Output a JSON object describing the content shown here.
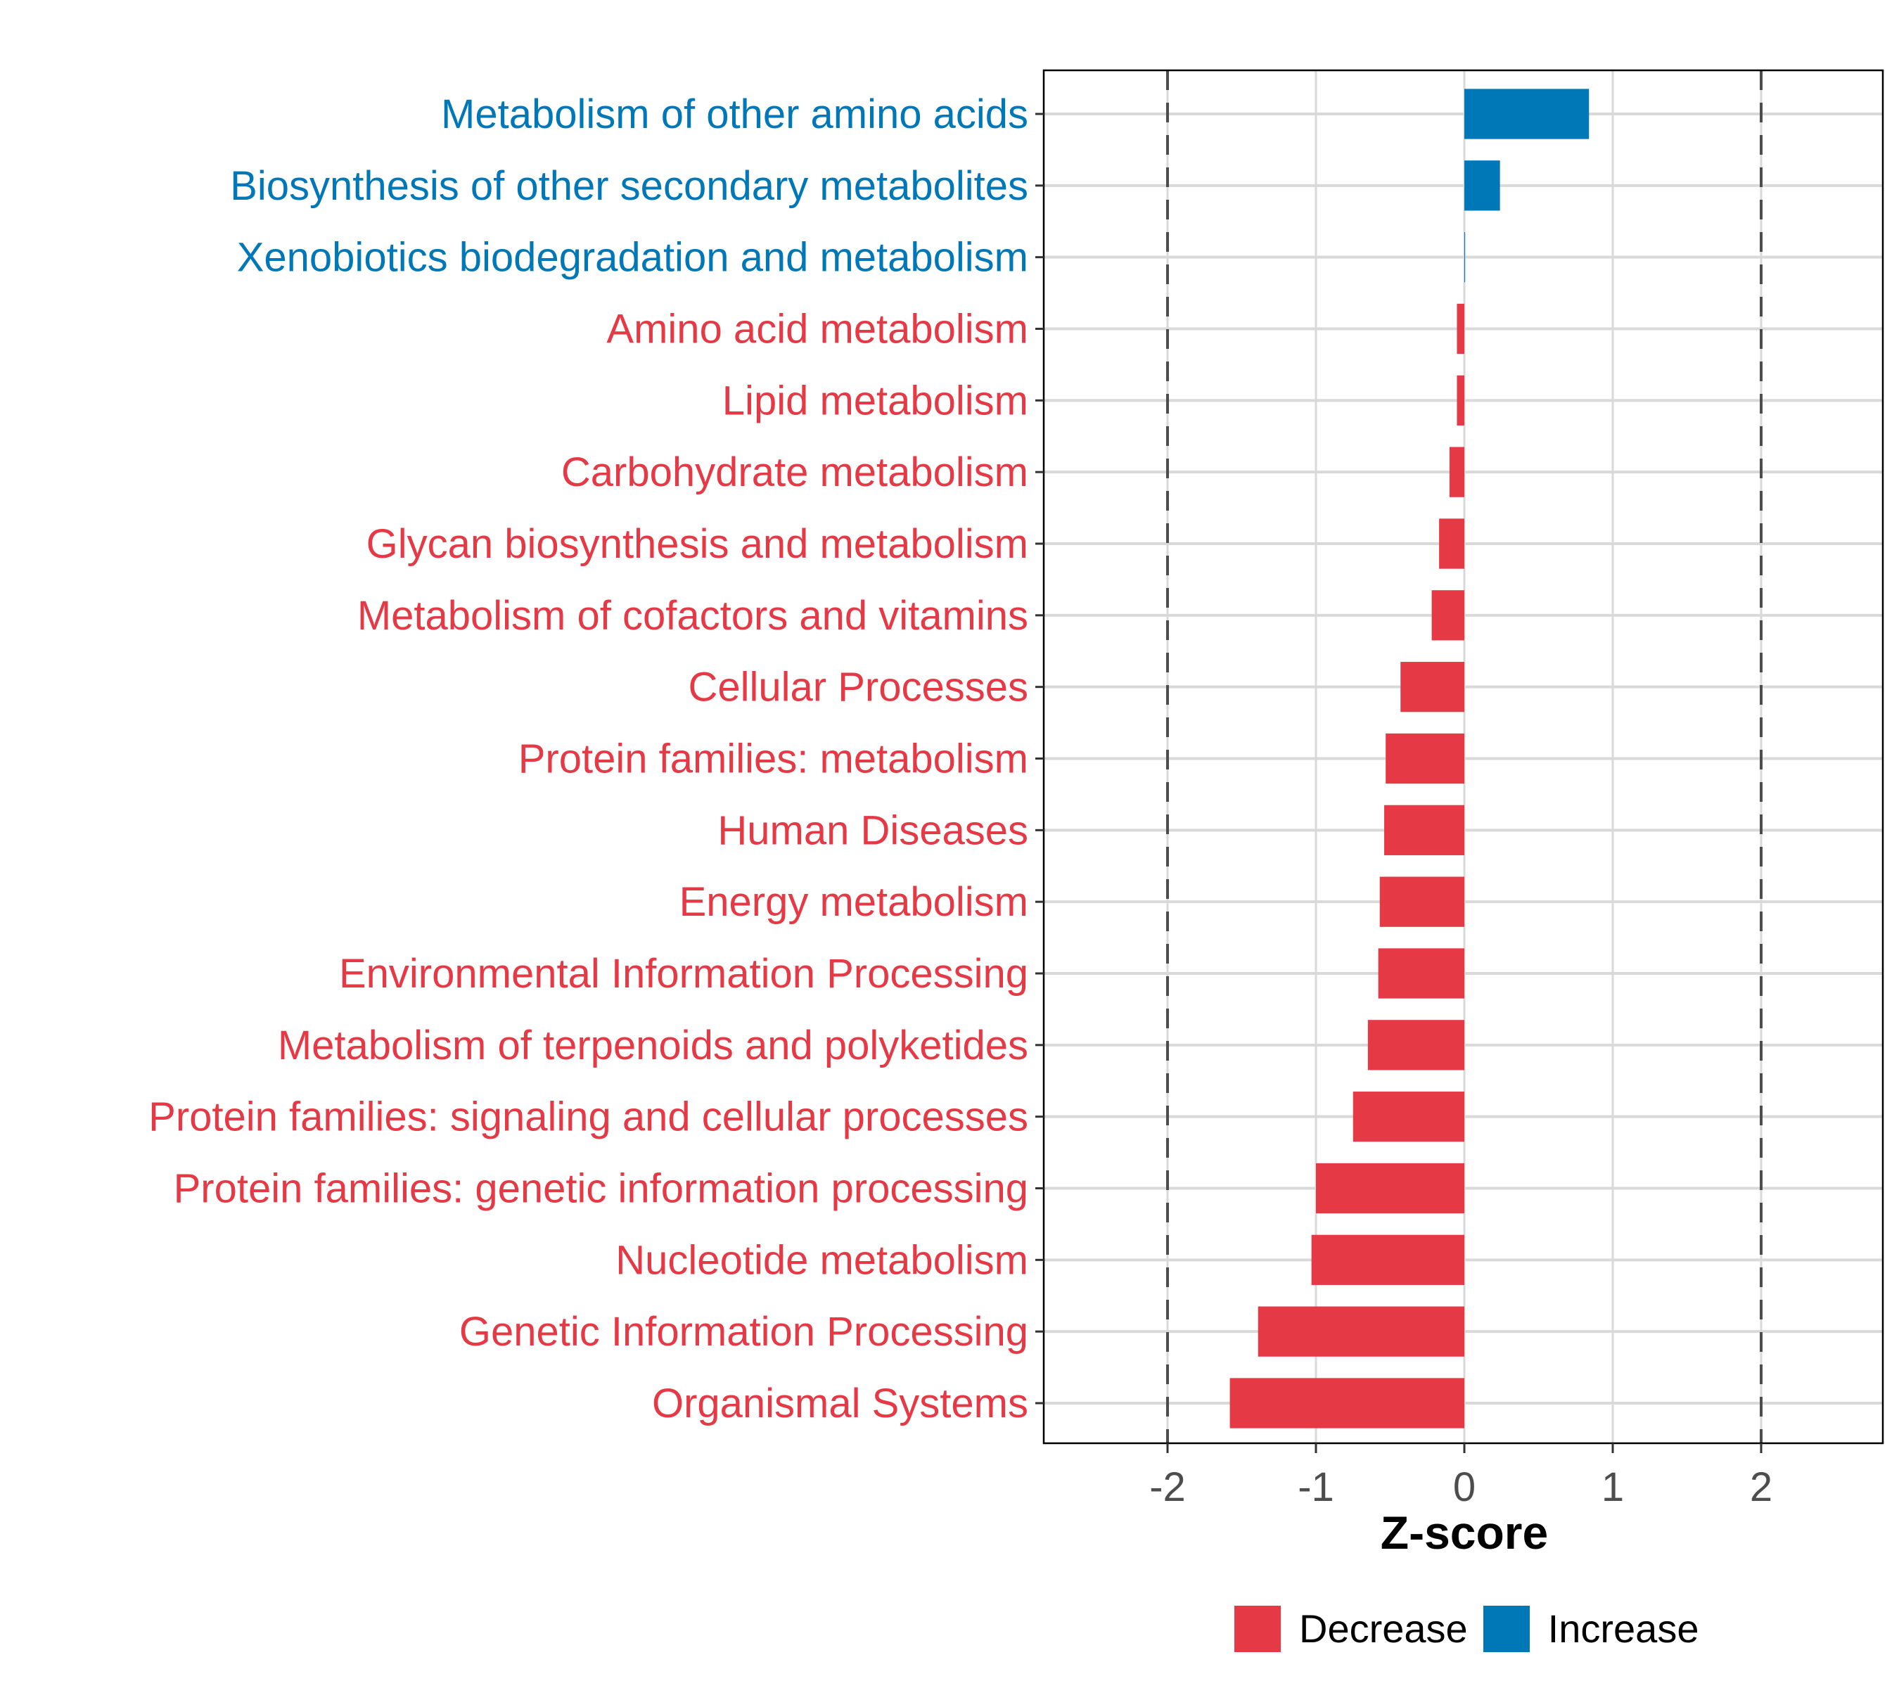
{
  "chart_data": {
    "type": "bar",
    "orientation": "horizontal",
    "title": "",
    "xlabel": "Z-score",
    "ylabel": "",
    "xlim": [
      -2.83,
      2.83
    ],
    "xticks": [
      -2,
      -1,
      0,
      1,
      2
    ],
    "xtick_labels": [
      "-2",
      "-1",
      "0",
      "1",
      "2"
    ],
    "reference_lines": [
      -2,
      2
    ],
    "reference_line_style": "dashed",
    "grid": true,
    "categories": [
      "Metabolism of other amino acids",
      "Biosynthesis of other secondary metabolites",
      "Xenobiotics biodegradation and metabolism",
      "Amino acid metabolism",
      "Lipid metabolism",
      "Carbohydrate metabolism",
      "Glycan biosynthesis and metabolism",
      "Metabolism of cofactors and vitamins",
      "Cellular Processes",
      "Protein families: metabolism",
      "Human Diseases",
      "Energy metabolism",
      "Environmental Information Processing",
      "Metabolism of terpenoids and polyketides",
      "Protein families: signaling and cellular processes",
      "Protein families: genetic information processing",
      "Nucleotide metabolism",
      "Genetic Information Processing",
      "Organismal Systems"
    ],
    "values": [
      0.84,
      0.24,
      0.005,
      -0.05,
      -0.05,
      -0.1,
      -0.17,
      -0.22,
      -0.43,
      -0.53,
      -0.54,
      -0.57,
      -0.58,
      -0.65,
      -0.75,
      -1.0,
      -1.03,
      -1.39,
      -1.58
    ],
    "groups": [
      "Increase",
      "Increase",
      "Increase",
      "Decrease",
      "Decrease",
      "Decrease",
      "Decrease",
      "Decrease",
      "Decrease",
      "Decrease",
      "Decrease",
      "Decrease",
      "Decrease",
      "Decrease",
      "Decrease",
      "Decrease",
      "Decrease",
      "Decrease",
      "Decrease"
    ],
    "legend": {
      "placement": "bottom",
      "entries": [
        {
          "name": "Decrease",
          "color": "#E63946"
        },
        {
          "name": "Increase",
          "color": "#0077B6"
        }
      ]
    }
  },
  "colors": {
    "decrease": "#E63946",
    "increase": "#0077B6",
    "grid": "#D9D9D9",
    "reference_line": "#4D4D4D",
    "tick_text": "#4D4D4D",
    "axis_title": "#000000"
  }
}
